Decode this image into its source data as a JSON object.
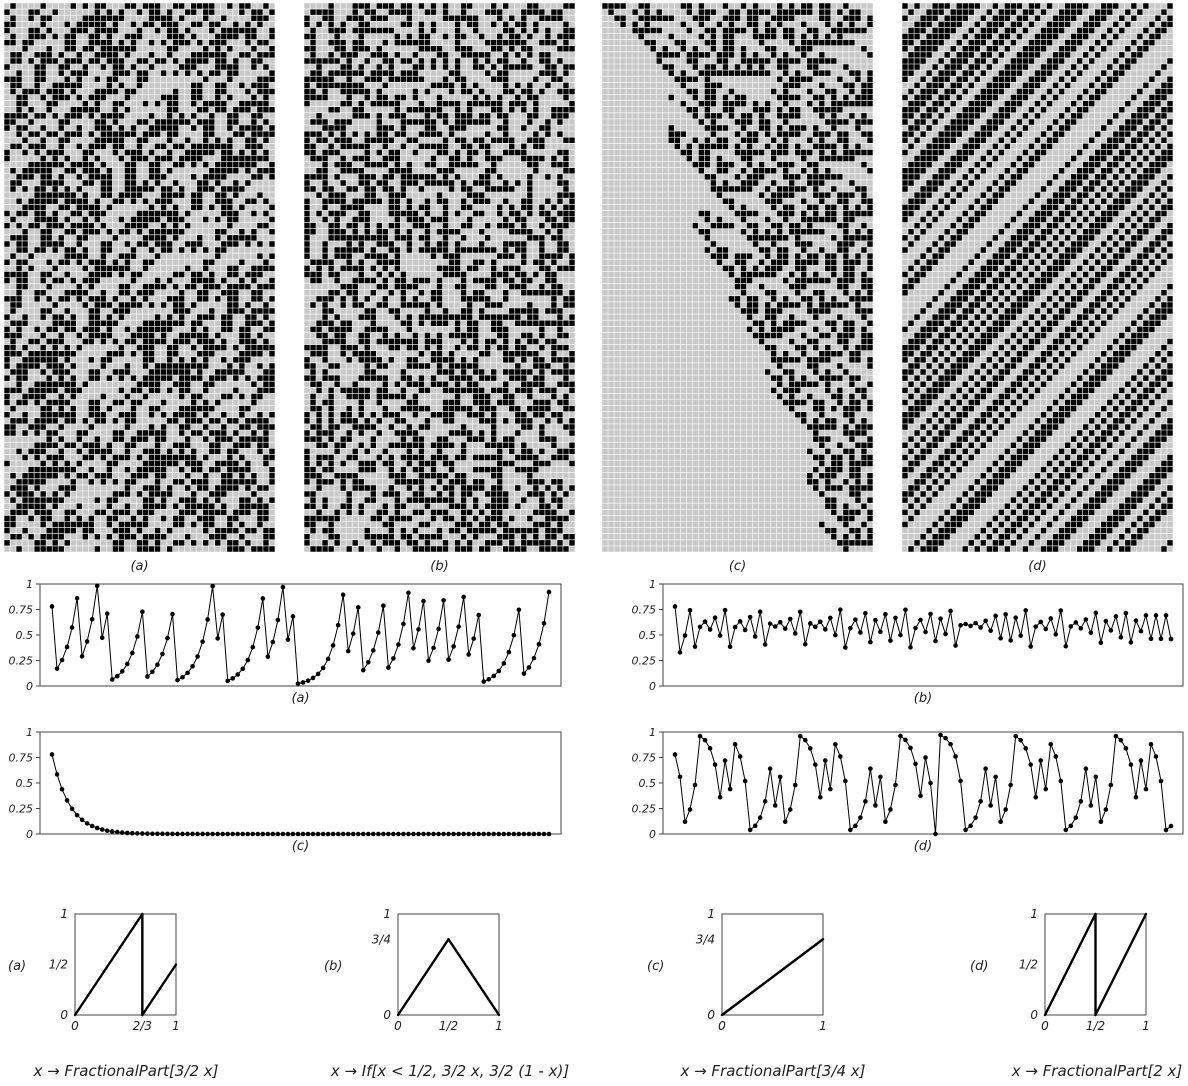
{
  "chart_data": [
    {
      "type": "heatmap",
      "panel": "a",
      "caption": "(a)",
      "encoding": "binary digit pattern; black = 1, light gray = 0",
      "map": "x -> FractionalPart[3/2 x]",
      "multiplier": 1.5,
      "columns": 45,
      "rows": 90
    },
    {
      "type": "heatmap",
      "panel": "b",
      "caption": "(b)",
      "encoding": "binary digit pattern; black = 1, light gray = 0",
      "map": "x -> If[x < 1/2, 3/2 x, 3/2 (1 - x)]",
      "columns": 45,
      "rows": 90
    },
    {
      "type": "heatmap",
      "panel": "c",
      "caption": "(c)",
      "encoding": "binary digit pattern; black = 1, light gray = 0",
      "map": "x -> FractionalPart[3/4 x]",
      "multiplier": 0.75,
      "columns": 45,
      "rows": 90
    },
    {
      "type": "heatmap",
      "panel": "d",
      "caption": "(d)",
      "encoding": "binary digit pattern; black = 1, light gray = 0",
      "map": "x -> FractionalPart[2 x]",
      "multiplier": 2,
      "columns": 45,
      "rows": 90
    },
    {
      "type": "line",
      "panel": "a",
      "caption": "(a)",
      "map": "x -> FractionalPart[3/2 x]",
      "x0": 0.78,
      "steps": 100,
      "ylim": [
        0,
        1
      ],
      "yticks": [
        "0",
        "0.25",
        "0.5",
        "0.75",
        "1"
      ]
    },
    {
      "type": "line",
      "panel": "b",
      "caption": "(b)",
      "map": "x -> If[x < 1/2, 3/2 x, 3/2 (1 - x)]",
      "x0": 0.78,
      "steps": 100,
      "ylim": [
        0,
        1
      ],
      "yticks": [
        "0",
        "0.25",
        "0.5",
        "0.75",
        "1"
      ]
    },
    {
      "type": "line",
      "panel": "c",
      "caption": "(c)",
      "map": "x -> FractionalPart[3/4 x]",
      "x0": 0.78,
      "steps": 100,
      "ylim": [
        0,
        1
      ],
      "yticks": [
        "0",
        "0.25",
        "0.5",
        "0.75",
        "1"
      ]
    },
    {
      "type": "line",
      "panel": "d",
      "caption": "(d)",
      "map": "x -> FractionalPart[2 x]",
      "x0": 0.78,
      "steps": 100,
      "ylim": [
        0,
        1
      ],
      "yticks": [
        "0",
        "0.25",
        "0.5",
        "0.75",
        "1"
      ]
    },
    {
      "type": "line",
      "panel": "a",
      "caption": "(a)",
      "formula": "x → FractionalPart[3/2 x]",
      "segments": [
        [
          [
            0,
            0
          ],
          [
            0.6667,
            1
          ]
        ],
        [
          [
            0.6667,
            1
          ],
          [
            0.6667,
            0
          ]
        ],
        [
          [
            0.6667,
            0
          ],
          [
            1,
            0.5
          ]
        ]
      ],
      "xticks": [
        {
          "x": 0,
          "label": "0"
        },
        {
          "x": 0.6667,
          "label": "2/3"
        },
        {
          "x": 1,
          "label": "1"
        }
      ],
      "yticks": [
        {
          "y": 0,
          "label": "0"
        },
        {
          "y": 0.5,
          "label": "1/2"
        },
        {
          "y": 1,
          "label": "1"
        }
      ]
    },
    {
      "type": "line",
      "panel": "b",
      "caption": "(b)",
      "formula": "x → If[x < 1/2, 3/2 x, 3/2 (1 - x)]",
      "segments": [
        [
          [
            0,
            0
          ],
          [
            0.5,
            0.75
          ]
        ],
        [
          [
            0.5,
            0.75
          ],
          [
            1,
            0
          ]
        ]
      ],
      "xticks": [
        {
          "x": 0,
          "label": "0"
        },
        {
          "x": 0.5,
          "label": "1/2"
        },
        {
          "x": 1,
          "label": "1"
        }
      ],
      "yticks": [
        {
          "y": 0,
          "label": "0"
        },
        {
          "y": 0.75,
          "label": "3/4"
        },
        {
          "y": 1,
          "label": "1"
        }
      ]
    },
    {
      "type": "line",
      "panel": "c",
      "caption": "(c)",
      "formula": "x → FractionalPart[3/4 x]",
      "segments": [
        [
          [
            0,
            0
          ],
          [
            1,
            0.75
          ]
        ]
      ],
      "xticks": [
        {
          "x": 0,
          "label": "0"
        },
        {
          "x": 1,
          "label": "1"
        }
      ],
      "yticks": [
        {
          "y": 0,
          "label": "0"
        },
        {
          "y": 0.75,
          "label": "3/4"
        },
        {
          "y": 1,
          "label": "1"
        }
      ]
    },
    {
      "type": "line",
      "panel": "d",
      "caption": "(d)",
      "formula": "x → FractionalPart[2 x]",
      "segments": [
        [
          [
            0,
            0
          ],
          [
            0.5,
            1
          ]
        ],
        [
          [
            0.5,
            1
          ],
          [
            0.5,
            0
          ]
        ],
        [
          [
            0.5,
            0
          ],
          [
            1,
            1
          ]
        ]
      ],
      "xticks": [
        {
          "x": 0,
          "label": "0"
        },
        {
          "x": 0.5,
          "label": "1/2"
        },
        {
          "x": 1,
          "label": "1"
        }
      ],
      "yticks": [
        {
          "y": 0,
          "label": "0"
        },
        {
          "y": 0.5,
          "label": "1/2"
        },
        {
          "y": 1,
          "label": "1"
        }
      ]
    }
  ],
  "colors": {
    "cell_on": "#000000",
    "cell_off": "#c8c8c8",
    "grid": "#ffffff",
    "ink": "#222222",
    "frame": "#444444"
  }
}
